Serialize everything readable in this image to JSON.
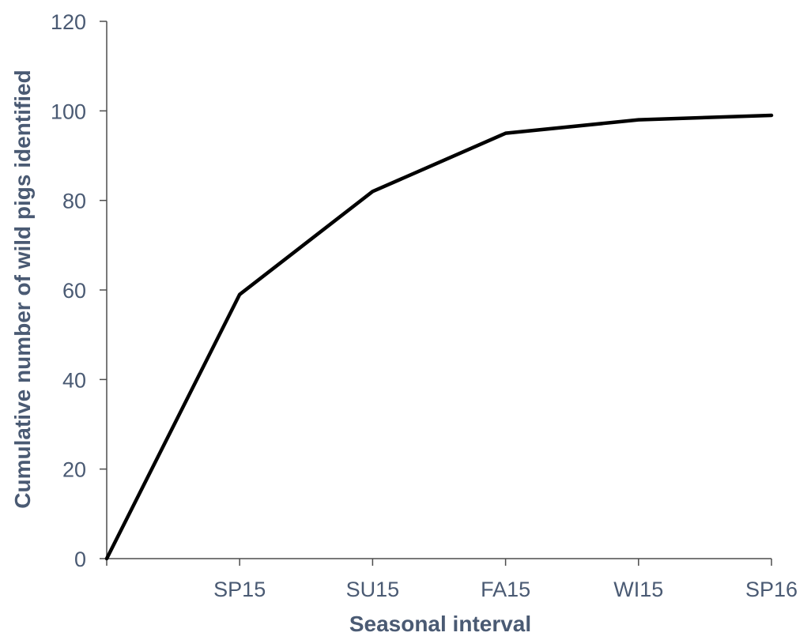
{
  "chart_data": {
    "type": "line",
    "title": "",
    "xlabel": "Seasonal interval",
    "ylabel": "Cumulative number of wild pigs identified",
    "categories": [
      "",
      "SP15",
      "SU15",
      "FA15",
      "WI15",
      "SP16"
    ],
    "series": [
      {
        "values": [
          0,
          59,
          82,
          95,
          98,
          99
        ]
      }
    ],
    "ylim": [
      0,
      120
    ],
    "yticks": [
      0,
      20,
      40,
      60,
      80,
      100,
      120
    ],
    "grid": false,
    "legend": "none"
  },
  "colors": {
    "line": "#000000",
    "axis": "#4d4d4d",
    "text": "#4a5a73"
  }
}
